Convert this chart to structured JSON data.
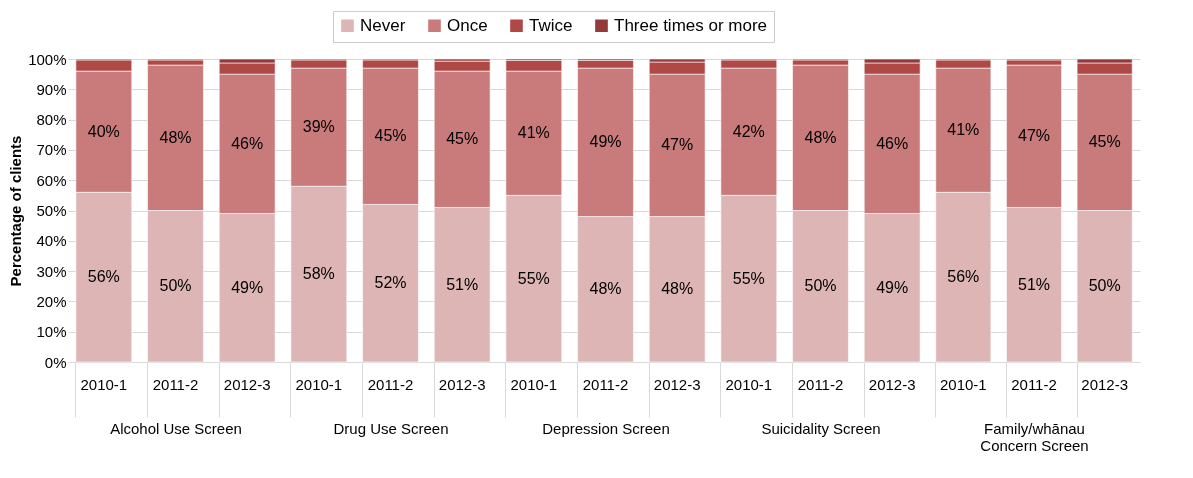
{
  "chart_data": [
    {
      "type": "bar",
      "stacked": true,
      "xlabel": "Alcohol Use Screen",
      "ylabel": "Percentage of clients",
      "legend": "top",
      "grid": "y",
      "categories": [
        "2010-1",
        "2011-2",
        "2012-3"
      ],
      "ylim": [
        0,
        100
      ],
      "yticks": [
        {
          "value": 0,
          "label": "0%"
        },
        {
          "value": 10,
          "label": "10%"
        },
        {
          "value": 20,
          "label": "20%"
        },
        {
          "value": 30,
          "label": "30%"
        },
        {
          "value": 40,
          "label": "40%"
        },
        {
          "value": 50,
          "label": "50%"
        },
        {
          "value": 60,
          "label": "60%"
        },
        {
          "value": 70,
          "label": "70%"
        },
        {
          "value": 80,
          "label": "80%"
        },
        {
          "value": 90,
          "label": "90%"
        },
        {
          "value": 100,
          "label": "100%"
        }
      ],
      "series": [
        {
          "name": "Never",
          "color": "#deb5b5",
          "values": [
            56,
            50,
            49
          ],
          "value_labels": [
            "56%",
            "50%",
            "49%"
          ]
        },
        {
          "name": "Once",
          "color": "#c97b7b",
          "values": [
            40,
            48,
            46
          ],
          "value_labels": [
            "40%",
            "48%",
            "46%"
          ]
        },
        {
          "name": "Twice",
          "color": "#b04845",
          "values": [
            3.7,
            1.7,
            3.7
          ]
        },
        {
          "name": "Three times or more",
          "color": "#933a3a",
          "values": [
            0.3,
            0.3,
            1.3
          ]
        }
      ]
    },
    {
      "type": "bar",
      "stacked": true,
      "xlabel": "Drug Use Screen",
      "grid": "y",
      "tick_labels": "x",
      "categories": [
        "2010-1",
        "2011-2",
        "2012-3"
      ],
      "ylim": [
        0,
        100
      ],
      "series": [
        {
          "color": "#deb5b5",
          "values": [
            58,
            52,
            51
          ],
          "value_labels": [
            "58%",
            "52%",
            "51%"
          ]
        },
        {
          "color": "#c97b7b",
          "values": [
            39,
            45,
            45
          ],
          "value_labels": [
            "39%",
            "45%",
            "45%"
          ]
        },
        {
          "color": "#b04845",
          "values": [
            2.7,
            2.7,
            3.3
          ]
        },
        {
          "color": "#933a3a",
          "values": [
            0.3,
            0.3,
            0.7
          ]
        }
      ]
    },
    {
      "type": "bar",
      "stacked": true,
      "xlabel": "Depression Screen",
      "grid": "y",
      "tick_labels": "x",
      "categories": [
        "2010-1",
        "2011-2",
        "2012-3"
      ],
      "ylim": [
        0,
        100
      ],
      "series": [
        {
          "color": "#deb5b5",
          "values": [
            55,
            48,
            48
          ],
          "value_labels": [
            "55%",
            "48%",
            "48%"
          ]
        },
        {
          "color": "#c97b7b",
          "values": [
            41,
            49,
            47
          ],
          "value_labels": [
            "41%",
            "49%",
            "47%"
          ]
        },
        {
          "color": "#b04845",
          "values": [
            3.5,
            2.5,
            4
          ]
        },
        {
          "color": "#933a3a",
          "values": [
            0.5,
            0.5,
            1
          ]
        }
      ]
    },
    {
      "type": "bar",
      "stacked": true,
      "xlabel": "Suicidality Screen",
      "grid": "y",
      "tick_labels": "x",
      "categories": [
        "2010-1",
        "2011-2",
        "2012-3"
      ],
      "ylim": [
        0,
        100
      ],
      "series": [
        {
          "color": "#deb5b5",
          "values": [
            55,
            50,
            49
          ],
          "value_labels": [
            "55%",
            "50%",
            "49%"
          ]
        },
        {
          "color": "#c97b7b",
          "values": [
            42,
            48,
            46
          ],
          "value_labels": [
            "42%",
            "48%",
            "46%"
          ]
        },
        {
          "color": "#b04845",
          "values": [
            2.7,
            1.7,
            3.7
          ]
        },
        {
          "color": "#933a3a",
          "values": [
            0.3,
            0.3,
            1.3
          ]
        }
      ]
    },
    {
      "type": "bar",
      "stacked": true,
      "xlabel": "Family/whānau\nConcern Screen",
      "grid": "y",
      "tick_labels": "x",
      "categories": [
        "2010-1",
        "2011-2",
        "2012-3"
      ],
      "ylim": [
        0,
        100
      ],
      "series": [
        {
          "color": "#deb5b5",
          "values": [
            56,
            51,
            50
          ],
          "value_labels": [
            "56%",
            "51%",
            "50%"
          ]
        },
        {
          "color": "#c97b7b",
          "values": [
            41,
            47,
            45
          ],
          "value_labels": [
            "41%",
            "47%",
            "45%"
          ]
        },
        {
          "color": "#b04845",
          "values": [
            2.7,
            1.7,
            3.7
          ]
        },
        {
          "color": "#933a3a",
          "values": [
            0.3,
            0.3,
            1.3
          ]
        }
      ]
    }
  ]
}
